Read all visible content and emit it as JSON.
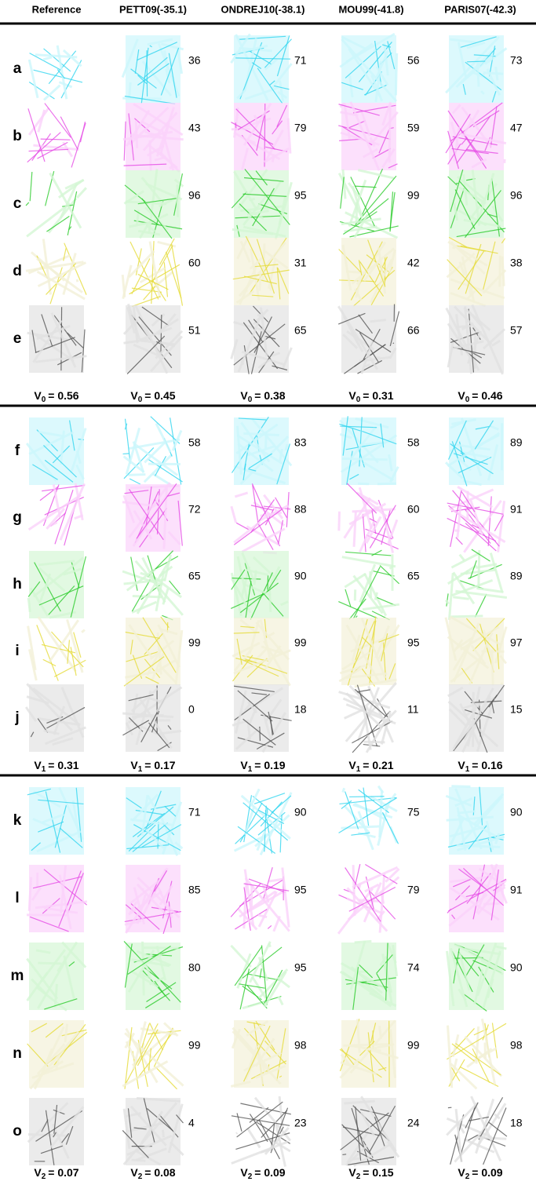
{
  "headers": [
    "Reference",
    "PETT09(-35.1)",
    "ONDREJ10(-38.1)",
    "MOU99(-41.8)",
    "PARIS07(-42.3)"
  ],
  "blocks": [
    {
      "rows": [
        {
          "label": "a",
          "scores": [
            36,
            71,
            56,
            73
          ]
        },
        {
          "label": "b",
          "scores": [
            43,
            79,
            59,
            47
          ]
        },
        {
          "label": "c",
          "scores": [
            96,
            95,
            99,
            96
          ]
        },
        {
          "label": "d",
          "scores": [
            60,
            31,
            42,
            38
          ]
        },
        {
          "label": "e",
          "scores": [
            51,
            65,
            66,
            57
          ]
        }
      ],
      "footer": [
        {
          "symbol": "V",
          "subscript": "0",
          "value": "= 0.56"
        },
        {
          "symbol": "V",
          "subscript": "0",
          "value": "= 0.45"
        },
        {
          "symbol": "V",
          "subscript": "0",
          "value": "= 0.38"
        },
        {
          "symbol": "V",
          "subscript": "0",
          "value": "= 0.31"
        },
        {
          "symbol": "V",
          "subscript": "0",
          "value": "= 0.46"
        }
      ]
    },
    {
      "rows": [
        {
          "label": "f",
          "scores": [
            58,
            83,
            58,
            89
          ]
        },
        {
          "label": "g",
          "scores": [
            72,
            88,
            60,
            91
          ]
        },
        {
          "label": "h",
          "scores": [
            65,
            90,
            65,
            89
          ]
        },
        {
          "label": "i",
          "scores": [
            99,
            99,
            95,
            97
          ]
        },
        {
          "label": "j",
          "scores": [
            0,
            18,
            11,
            15
          ]
        }
      ],
      "footer": [
        {
          "symbol": "V",
          "subscript": "1",
          "value": "= 0.31"
        },
        {
          "symbol": "V",
          "subscript": "1",
          "value": "= 0.17"
        },
        {
          "symbol": "V",
          "subscript": "1",
          "value": "= 0.19"
        },
        {
          "symbol": "V",
          "subscript": "1",
          "value": "= 0.21"
        },
        {
          "symbol": "V",
          "subscript": "1",
          "value": "= 0.16"
        }
      ]
    },
    {
      "rows": [
        {
          "label": "k",
          "scores": [
            71,
            90,
            75,
            90
          ]
        },
        {
          "label": "l",
          "scores": [
            85,
            95,
            79,
            91
          ]
        },
        {
          "label": "m",
          "scores": [
            80,
            95,
            74,
            90
          ]
        },
        {
          "label": "n",
          "scores": [
            99,
            98,
            99,
            98
          ]
        },
        {
          "label": "o",
          "scores": [
            4,
            23,
            24,
            18
          ]
        }
      ],
      "footer": [
        {
          "symbol": "V",
          "subscript": "2",
          "value": "= 0.07"
        },
        {
          "symbol": "V",
          "subscript": "2",
          "value": "= 0.08"
        },
        {
          "symbol": "V",
          "subscript": "2",
          "value": "= 0.09"
        },
        {
          "symbol": "V",
          "subscript": "2",
          "value": "= 0.15"
        },
        {
          "symbol": "V",
          "subscript": "2",
          "value": "= 0.09"
        }
      ]
    }
  ]
}
